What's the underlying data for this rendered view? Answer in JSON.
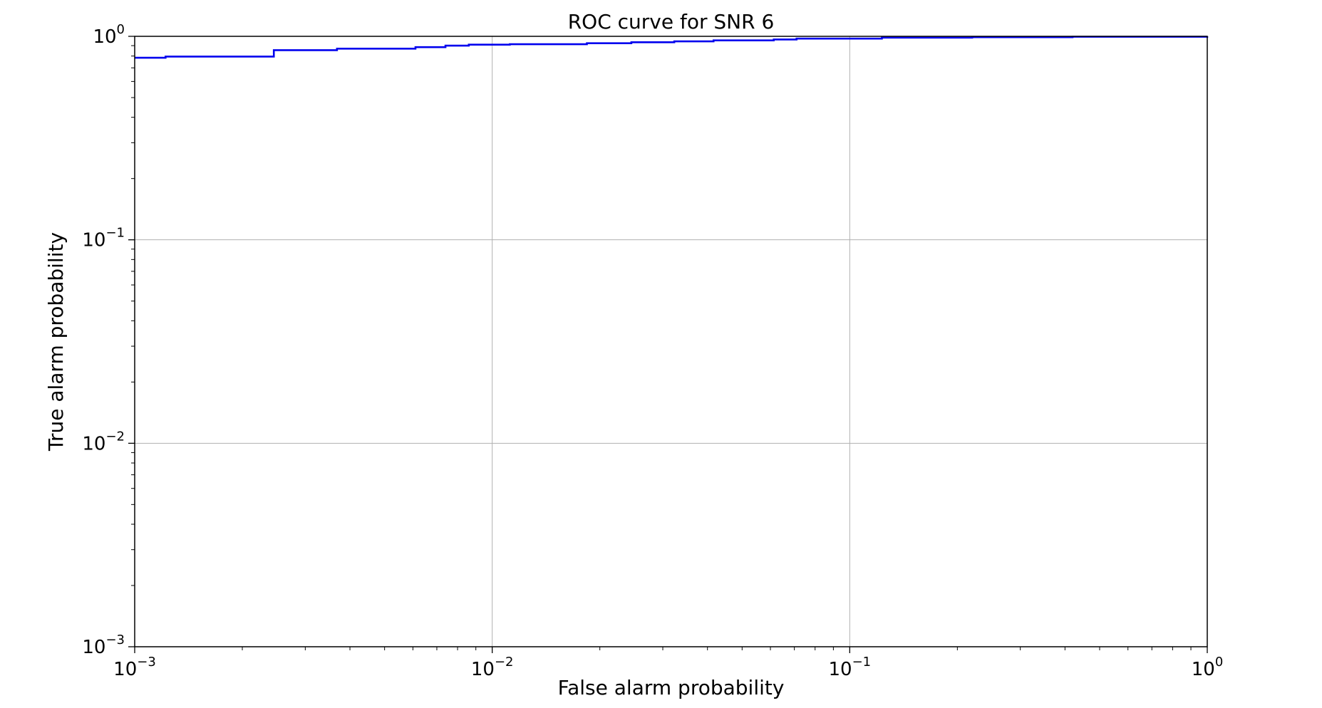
{
  "chart_data": {
    "type": "line",
    "title": "ROC curve for SNR 6",
    "xlabel": "False alarm probability",
    "ylabel": "True alarm probability",
    "xscale": "log",
    "yscale": "log",
    "xlim": [
      0.001,
      1
    ],
    "ylim": [
      0.001,
      1
    ],
    "grid": true,
    "line_style": "steps-post",
    "x_ticks": [
      {
        "value": 0.001,
        "base": "10",
        "exp": "−3"
      },
      {
        "value": 0.01,
        "base": "10",
        "exp": "−2"
      },
      {
        "value": 0.1,
        "base": "10",
        "exp": "−1"
      },
      {
        "value": 1,
        "base": "10",
        "exp": "0"
      }
    ],
    "y_ticks": [
      {
        "value": 0.001,
        "base": "10",
        "exp": "−3"
      },
      {
        "value": 0.01,
        "base": "10",
        "exp": "−2"
      },
      {
        "value": 0.1,
        "base": "10",
        "exp": "−1"
      },
      {
        "value": 1,
        "base": "10",
        "exp": "0"
      }
    ],
    "series": [
      {
        "color": "#0000ee",
        "x": [
          0.001,
          0.00122,
          0.00245,
          0.00368,
          0.0061,
          0.0074,
          0.0086,
          0.0112,
          0.0184,
          0.0245,
          0.0323,
          0.0416,
          0.0613,
          0.071,
          0.123,
          0.22,
          0.42,
          1.0
        ],
        "y": [
          0.785,
          0.795,
          0.855,
          0.87,
          0.885,
          0.9,
          0.91,
          0.915,
          0.925,
          0.935,
          0.945,
          0.955,
          0.965,
          0.975,
          0.985,
          0.99,
          0.995,
          1.0
        ]
      }
    ]
  }
}
